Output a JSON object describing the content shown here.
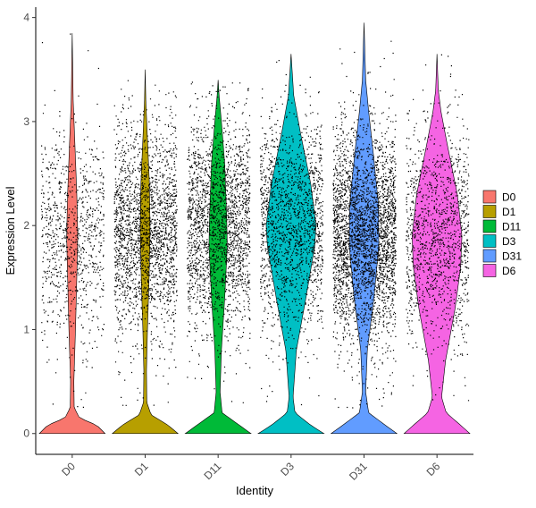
{
  "chart_data": {
    "type": "violin",
    "xlabel": "Identity",
    "ylabel": "Expression Level",
    "ylim": [
      -0.2,
      4.1
    ],
    "yticks": [
      "0",
      "1",
      "2",
      "3",
      "4"
    ],
    "grid": false,
    "legend_position": "right",
    "categories": [
      "D0",
      "D1",
      "D11",
      "D3",
      "D31",
      "D6"
    ],
    "series": [
      {
        "name": "D0",
        "color": "#F8766D",
        "max": 3.85,
        "mode": 1.9,
        "points": 900,
        "density": [
          [
            0,
            1.0
          ],
          [
            0.08,
            0.75
          ],
          [
            0.15,
            0.22
          ],
          [
            0.25,
            0.06
          ],
          [
            0.5,
            0.05
          ],
          [
            1.0,
            0.1
          ],
          [
            1.5,
            0.14
          ],
          [
            1.9,
            0.17
          ],
          [
            2.3,
            0.14
          ],
          [
            2.8,
            0.08
          ],
          [
            3.2,
            0.03
          ],
          [
            3.85,
            0.0
          ]
        ]
      },
      {
        "name": "D1",
        "color": "#B79F00",
        "max": 3.5,
        "mode": 1.95,
        "points": 2200,
        "density": [
          [
            0,
            1.0
          ],
          [
            0.08,
            0.7
          ],
          [
            0.18,
            0.18
          ],
          [
            0.3,
            0.05
          ],
          [
            0.6,
            0.04
          ],
          [
            1.0,
            0.07
          ],
          [
            1.5,
            0.12
          ],
          [
            1.95,
            0.15
          ],
          [
            2.4,
            0.13
          ],
          [
            2.9,
            0.06
          ],
          [
            3.2,
            0.02
          ],
          [
            3.5,
            0.0
          ]
        ]
      },
      {
        "name": "D11",
        "color": "#00BA38",
        "max": 3.4,
        "mode": 2.0,
        "points": 2200,
        "density": [
          [
            0,
            1.0
          ],
          [
            0.08,
            0.65
          ],
          [
            0.2,
            0.12
          ],
          [
            0.4,
            0.06
          ],
          [
            0.8,
            0.1
          ],
          [
            1.3,
            0.2
          ],
          [
            1.8,
            0.28
          ],
          [
            2.1,
            0.26
          ],
          [
            2.6,
            0.2
          ],
          [
            3.0,
            0.1
          ],
          [
            3.25,
            0.03
          ],
          [
            3.4,
            0.0
          ]
        ]
      },
      {
        "name": "D3",
        "color": "#00BFC4",
        "max": 3.65,
        "mode": 2.0,
        "points": 1700,
        "density": [
          [
            0,
            1.0
          ],
          [
            0.08,
            0.6
          ],
          [
            0.2,
            0.12
          ],
          [
            0.35,
            0.06
          ],
          [
            0.8,
            0.16
          ],
          [
            1.3,
            0.45
          ],
          [
            1.8,
            0.72
          ],
          [
            2.0,
            0.76
          ],
          [
            2.4,
            0.6
          ],
          [
            2.9,
            0.28
          ],
          [
            3.25,
            0.08
          ],
          [
            3.65,
            0.0
          ]
        ]
      },
      {
        "name": "D31",
        "color": "#619CFF",
        "max": 3.95,
        "mode": 1.9,
        "points": 3200,
        "density": [
          [
            0,
            1.0
          ],
          [
            0.08,
            0.65
          ],
          [
            0.2,
            0.14
          ],
          [
            0.4,
            0.05
          ],
          [
            0.8,
            0.1
          ],
          [
            1.3,
            0.3
          ],
          [
            1.8,
            0.45
          ],
          [
            2.2,
            0.44
          ],
          [
            2.7,
            0.28
          ],
          [
            3.1,
            0.14
          ],
          [
            3.4,
            0.05
          ],
          [
            3.95,
            0.0
          ]
        ]
      },
      {
        "name": "D6",
        "color": "#F564E3",
        "max": 3.65,
        "mode": 1.9,
        "points": 1300,
        "density": [
          [
            0,
            1.0
          ],
          [
            0.08,
            0.72
          ],
          [
            0.2,
            0.28
          ],
          [
            0.35,
            0.14
          ],
          [
            0.7,
            0.26
          ],
          [
            1.2,
            0.55
          ],
          [
            1.6,
            0.72
          ],
          [
            1.9,
            0.76
          ],
          [
            2.3,
            0.62
          ],
          [
            2.8,
            0.3
          ],
          [
            3.1,
            0.12
          ],
          [
            3.3,
            0.04
          ],
          [
            3.65,
            0.0
          ]
        ]
      }
    ]
  }
}
